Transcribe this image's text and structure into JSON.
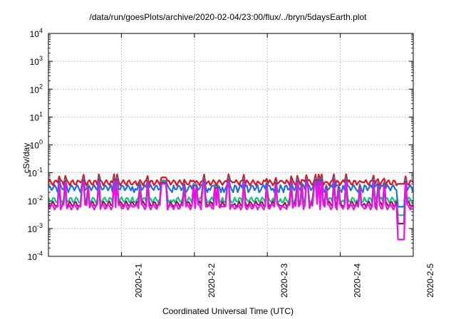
{
  "chart_data": {
    "type": "line",
    "title": "/data/run/goesPlots/archive/2020-02-04/23:00/flux/../bryn/5daysEarth.plot",
    "xlabel": "Coordinated Universal Time (UTC)",
    "ylabel": "cSv/day",
    "y_scale": "log",
    "ylim": [
      0.0001,
      10000
    ],
    "y_ticks": [
      {
        "value": 0.0001,
        "base": "10",
        "exp": "-4"
      },
      {
        "value": 0.001,
        "base": "10",
        "exp": "-3"
      },
      {
        "value": 0.01,
        "base": "10",
        "exp": "-2"
      },
      {
        "value": 0.1,
        "base": "10",
        "exp": "-1"
      },
      {
        "value": 1,
        "base": "10",
        "exp": "0"
      },
      {
        "value": 10,
        "base": "10",
        "exp": "1"
      },
      {
        "value": 100,
        "base": "10",
        "exp": "2"
      },
      {
        "value": 1000,
        "base": "10",
        "exp": "3"
      },
      {
        "value": 10000,
        "base": "10",
        "exp": "4"
      }
    ],
    "xlim": [
      "2020-01-31 00:00",
      "2020-02-05 00:00"
    ],
    "x_ticks": [
      "2020-2-1",
      "2020-2-2",
      "2020-2-3",
      "2020-2-4",
      "2020-2-5"
    ],
    "grid": true,
    "series": [
      {
        "color": "#e8101c",
        "base": 0.05,
        "spike": 0.085,
        "low_spike": 0.045,
        "end_dip": 0.04
      },
      {
        "color": "#1a6cf0",
        "base": 0.033,
        "spike": 0.065,
        "low_spike": 0.02,
        "end_dip": 0.006
      },
      {
        "color": "#10c87a",
        "base": 0.012,
        "spike": 0.06,
        "low_spike": 0.009,
        "end_dip": 0.003
      },
      {
        "color": "#a0105a",
        "base": 0.0085,
        "spike": 0.055,
        "low_spike": 0.007,
        "end_dip": 0.0015
      },
      {
        "color": "#ee10ee",
        "base": 0.0068,
        "spike": 0.05,
        "low_spike": 0.006,
        "end_dip": 0.0004
      }
    ]
  }
}
